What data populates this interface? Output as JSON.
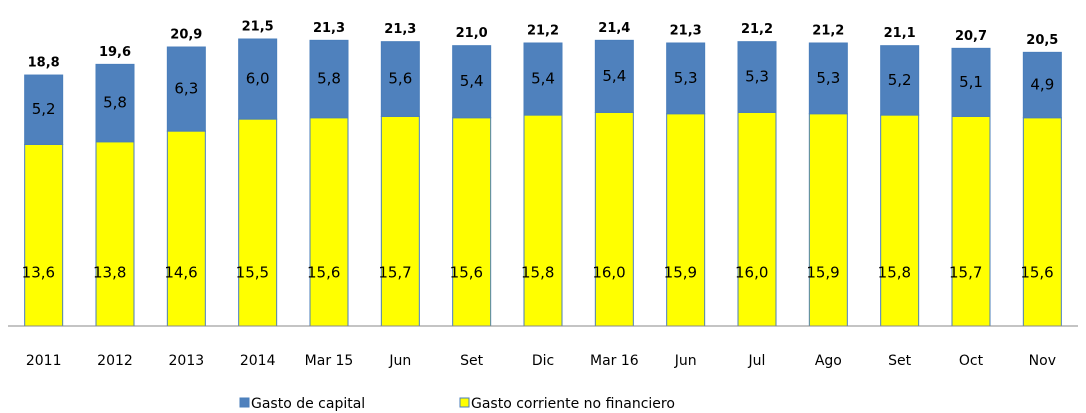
{
  "chart_data": {
    "type": "stacked-bar",
    "categories": [
      "2011",
      "2012",
      "2013",
      "2014",
      "Mar 15",
      "Jun",
      "Set",
      "Dic",
      "Mar 16",
      "Jun",
      "Jul",
      "Ago",
      "Set",
      "Oct",
      "Nov"
    ],
    "series": [
      {
        "name": "Gasto corriente no financiero",
        "color": "#ffff00",
        "values": [
          13.6,
          13.8,
          14.6,
          15.5,
          15.6,
          15.7,
          15.6,
          15.8,
          16.0,
          15.9,
          16.0,
          15.9,
          15.8,
          15.7,
          15.6
        ],
        "value_labels": [
          "13,6",
          "13,8",
          "14,6",
          "15,5",
          "15,6",
          "15,7",
          "15,6",
          "15,8",
          "16,0",
          "15,9",
          "16,0",
          "15,9",
          "15,8",
          "15,7",
          "15,6"
        ]
      },
      {
        "name": "Gasto de capital",
        "color": "#4f81bd",
        "values": [
          5.2,
          5.8,
          6.3,
          6.0,
          5.8,
          5.6,
          5.4,
          5.4,
          5.4,
          5.3,
          5.3,
          5.3,
          5.2,
          5.1,
          4.9
        ],
        "value_labels": [
          "5,2",
          "5,8",
          "6,3",
          "6,0",
          "5,8",
          "5,6",
          "5,4",
          "5,4",
          "5,4",
          "5,3",
          "5,3",
          "5,3",
          "5,2",
          "5,1",
          "4,9"
        ]
      }
    ],
    "totals": [
      18.8,
      19.6,
      20.9,
      21.5,
      21.3,
      21.3,
      21.0,
      21.2,
      21.4,
      21.3,
      21.2,
      21.2,
      21.1,
      20.7,
      20.5
    ],
    "total_labels": [
      "18,8",
      "19,6",
      "20,9",
      "21,5",
      "21,3",
      "21,3",
      "21,0",
      "21,2",
      "21,4",
      "21,3",
      "21,2",
      "21,2",
      "21,1",
      "20,7",
      "20,5"
    ],
    "ylim": [
      0,
      21.5
    ]
  }
}
